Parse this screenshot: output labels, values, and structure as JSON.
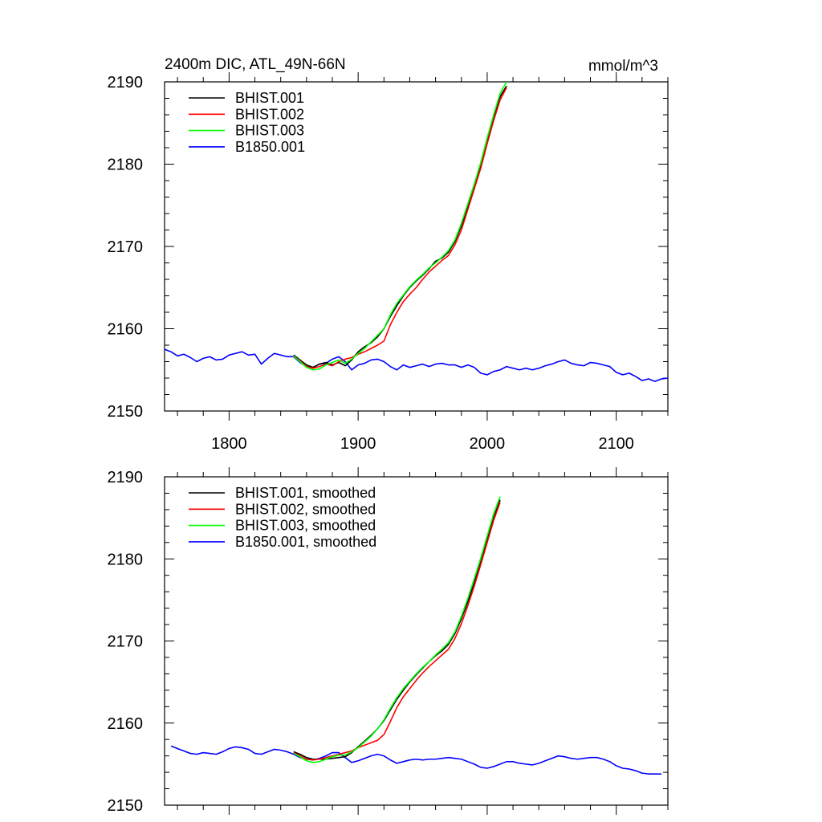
{
  "chart_data": [
    {
      "type": "line",
      "title": "2400m DIC, ATL_49N-66N",
      "units": "mmol/m^3",
      "xlim": [
        1750,
        2140
      ],
      "ylim": [
        2150,
        2190
      ],
      "x_ticks": [
        1800,
        1900,
        2000,
        2100
      ],
      "x_tick_labels": [
        "1800",
        "1900",
        "2000",
        "2100"
      ],
      "y_ticks": [
        2150,
        2160,
        2170,
        2180,
        2190
      ],
      "y_tick_labels": [
        "2150",
        "2160",
        "2170",
        "2180",
        "2190"
      ],
      "grid": false,
      "legend_position": "top-left",
      "series": [
        {
          "name": "BHIST.001",
          "color": "#000000",
          "x": [
            1850,
            1855,
            1860,
            1865,
            1870,
            1875,
            1880,
            1885,
            1890,
            1895,
            1900,
            1905,
            1910,
            1915,
            1920,
            1925,
            1930,
            1935,
            1940,
            1945,
            1950,
            1955,
            1960,
            1965,
            1970,
            1975,
            1980,
            1985,
            1990,
            1995,
            2000,
            2005,
            2010,
            2015
          ],
          "y": [
            2156.8,
            2156.2,
            2155.6,
            2155.3,
            2155.7,
            2155.9,
            2155.6,
            2155.9,
            2155.5,
            2156.2,
            2157.2,
            2157.8,
            2158.3,
            2159.0,
            2160.0,
            2161.5,
            2162.8,
            2164.0,
            2165.0,
            2165.8,
            2166.5,
            2167.3,
            2168.2,
            2168.6,
            2169.3,
            2170.6,
            2172.5,
            2174.8,
            2177.3,
            2179.8,
            2182.8,
            2185.6,
            2188.2,
            2189.5
          ]
        },
        {
          "name": "BHIST.002",
          "color": "#ff0000",
          "x": [
            1850,
            1855,
            1860,
            1865,
            1870,
            1875,
            1880,
            1885,
            1890,
            1895,
            1900,
            1905,
            1910,
            1915,
            1920,
            1925,
            1930,
            1935,
            1940,
            1945,
            1950,
            1955,
            1960,
            1965,
            1970,
            1975,
            1980,
            1985,
            1990,
            1995,
            2000,
            2005,
            2010,
            2015
          ],
          "y": [
            2156.6,
            2156.1,
            2155.4,
            2155.2,
            2155.4,
            2155.7,
            2155.5,
            2156.0,
            2156.3,
            2156.5,
            2156.9,
            2157.2,
            2157.6,
            2158.0,
            2158.5,
            2160.5,
            2162.0,
            2163.3,
            2164.2,
            2165.0,
            2166.0,
            2166.9,
            2167.6,
            2168.3,
            2168.9,
            2170.2,
            2172.0,
            2174.5,
            2177.0,
            2179.5,
            2182.5,
            2185.3,
            2187.8,
            2189.3
          ]
        },
        {
          "name": "BHIST.003",
          "color": "#00ff00",
          "x": [
            1850,
            1855,
            1860,
            1865,
            1870,
            1875,
            1880,
            1885,
            1890,
            1895,
            1900,
            1905,
            1910,
            1915,
            1920,
            1925,
            1930,
            1935,
            1940,
            1945,
            1950,
            1955,
            1960,
            1965,
            1970,
            1975,
            1980,
            1985,
            1990,
            1995,
            2000,
            2005,
            2010,
            2015
          ],
          "y": [
            2156.7,
            2156.0,
            2155.3,
            2155.0,
            2155.1,
            2155.6,
            2155.9,
            2156.2,
            2155.8,
            2156.3,
            2157.0,
            2157.6,
            2158.4,
            2159.2,
            2160.0,
            2161.7,
            2163.1,
            2164.1,
            2165.1,
            2165.9,
            2166.6,
            2167.4,
            2168.0,
            2168.7,
            2169.5,
            2170.8,
            2172.8,
            2175.2,
            2177.6,
            2180.2,
            2183.2,
            2186.0,
            2188.6,
            2190.0
          ]
        },
        {
          "name": "B1850.001",
          "color": "#0000ff",
          "x": [
            1750,
            1755,
            1760,
            1765,
            1770,
            1775,
            1780,
            1785,
            1790,
            1795,
            1800,
            1805,
            1810,
            1815,
            1820,
            1825,
            1830,
            1835,
            1840,
            1845,
            1850,
            1855,
            1860,
            1865,
            1870,
            1875,
            1880,
            1885,
            1890,
            1895,
            1900,
            1905,
            1910,
            1915,
            1920,
            1925,
            1930,
            1935,
            1940,
            1945,
            1950,
            1955,
            1960,
            1965,
            1970,
            1975,
            1980,
            1985,
            1990,
            1995,
            2000,
            2005,
            2010,
            2015,
            2020,
            2025,
            2030,
            2035,
            2040,
            2045,
            2050,
            2055,
            2060,
            2065,
            2070,
            2075,
            2080,
            2085,
            2090,
            2095,
            2100,
            2105,
            2110,
            2115,
            2120,
            2125,
            2130,
            2135,
            2140
          ],
          "y": [
            2157.5,
            2157.2,
            2156.7,
            2156.9,
            2156.5,
            2156.0,
            2156.4,
            2156.6,
            2156.2,
            2156.3,
            2156.8,
            2157.0,
            2157.2,
            2156.8,
            2156.9,
            2155.7,
            2156.4,
            2157.0,
            2156.8,
            2156.6,
            2156.6,
            2155.9,
            2155.4,
            2155.3,
            2155.7,
            2155.8,
            2156.3,
            2156.6,
            2156.0,
            2155.0,
            2155.6,
            2155.8,
            2156.2,
            2156.3,
            2156.0,
            2155.4,
            2155.0,
            2155.6,
            2155.3,
            2155.5,
            2155.7,
            2155.4,
            2155.7,
            2155.8,
            2155.6,
            2155.6,
            2155.3,
            2155.6,
            2155.3,
            2154.6,
            2154.4,
            2154.8,
            2155.0,
            2155.4,
            2155.2,
            2155.0,
            2155.2,
            2155.0,
            2155.2,
            2155.5,
            2155.7,
            2156.0,
            2156.2,
            2155.8,
            2155.6,
            2155.5,
            2155.9,
            2155.8,
            2155.6,
            2155.4,
            2154.7,
            2154.4,
            2154.6,
            2154.2,
            2153.7,
            2153.9,
            2153.6,
            2153.9,
            2154.0
          ]
        }
      ]
    },
    {
      "type": "line",
      "xlim": [
        1750,
        2140
      ],
      "ylim": [
        2150,
        2190
      ],
      "x_ticks": [
        1800,
        1900,
        2000,
        2100
      ],
      "y_ticks": [
        2150,
        2160,
        2170,
        2180,
        2190
      ],
      "y_tick_labels": [
        "2150",
        "2160",
        "2170",
        "2180",
        "2190"
      ],
      "grid": false,
      "legend_position": "top-left",
      "series": [
        {
          "name": "BHIST.001, smoothed",
          "color": "#000000",
          "x": [
            1850,
            1855,
            1860,
            1865,
            1870,
            1875,
            1880,
            1885,
            1890,
            1895,
            1900,
            1905,
            1910,
            1915,
            1920,
            1925,
            1930,
            1935,
            1940,
            1945,
            1950,
            1955,
            1960,
            1965,
            1970,
            1975,
            1980,
            1985,
            1990,
            1995,
            2000,
            2005,
            2010
          ],
          "y": [
            2156.5,
            2156.2,
            2155.8,
            2155.6,
            2155.6,
            2155.6,
            2155.7,
            2155.8,
            2155.9,
            2156.4,
            2157.1,
            2157.8,
            2158.5,
            2159.3,
            2160.3,
            2161.6,
            2162.9,
            2164.0,
            2165.0,
            2165.9,
            2166.7,
            2167.5,
            2168.2,
            2168.8,
            2169.6,
            2170.9,
            2172.7,
            2174.8,
            2177.1,
            2179.6,
            2182.3,
            2185.0,
            2187.2
          ]
        },
        {
          "name": "BHIST.002, smoothed",
          "color": "#ff0000",
          "x": [
            1850,
            1855,
            1860,
            1865,
            1870,
            1875,
            1880,
            1885,
            1890,
            1895,
            1900,
            1905,
            1910,
            1915,
            1920,
            1925,
            1930,
            1935,
            1940,
            1945,
            1950,
            1955,
            1960,
            1965,
            1970,
            1975,
            1980,
            1985,
            1990,
            1995,
            2000,
            2005,
            2010
          ],
          "y": [
            2156.4,
            2156.0,
            2155.6,
            2155.5,
            2155.6,
            2155.8,
            2156.0,
            2156.2,
            2156.4,
            2156.6,
            2157.0,
            2157.3,
            2157.6,
            2157.9,
            2158.6,
            2160.2,
            2161.9,
            2163.2,
            2164.2,
            2165.2,
            2166.1,
            2166.9,
            2167.6,
            2168.3,
            2169.0,
            2170.3,
            2172.1,
            2174.3,
            2176.7,
            2179.3,
            2182.0,
            2184.7,
            2186.9
          ]
        },
        {
          "name": "BHIST.003, smoothed",
          "color": "#00ff00",
          "x": [
            1850,
            1855,
            1860,
            1865,
            1870,
            1875,
            1880,
            1885,
            1890,
            1895,
            1900,
            1905,
            1910,
            1915,
            1920,
            1925,
            1930,
            1935,
            1940,
            1945,
            1950,
            1955,
            1960,
            1965,
            1970,
            1975,
            1980,
            1985,
            1990,
            1995,
            2000,
            2005,
            2010
          ],
          "y": [
            2156.3,
            2155.9,
            2155.4,
            2155.2,
            2155.3,
            2155.6,
            2155.9,
            2156.1,
            2156.1,
            2156.5,
            2157.0,
            2157.7,
            2158.4,
            2159.3,
            2160.4,
            2161.8,
            2163.1,
            2164.2,
            2165.1,
            2166.0,
            2166.8,
            2167.5,
            2168.3,
            2169.0,
            2169.8,
            2171.1,
            2173.0,
            2175.2,
            2177.6,
            2180.1,
            2182.8,
            2185.5,
            2187.6
          ]
        },
        {
          "name": "B1850.001, smoothed",
          "color": "#0000ff",
          "x": [
            1755,
            1760,
            1765,
            1770,
            1775,
            1780,
            1785,
            1790,
            1795,
            1800,
            1805,
            1810,
            1815,
            1820,
            1825,
            1830,
            1835,
            1840,
            1845,
            1850,
            1855,
            1860,
            1865,
            1870,
            1875,
            1880,
            1885,
            1890,
            1895,
            1900,
            1905,
            1910,
            1915,
            1920,
            1925,
            1930,
            1935,
            1940,
            1945,
            1950,
            1955,
            1960,
            1965,
            1970,
            1975,
            1980,
            1985,
            1990,
            1995,
            2000,
            2005,
            2010,
            2015,
            2020,
            2025,
            2030,
            2035,
            2040,
            2045,
            2050,
            2055,
            2060,
            2065,
            2070,
            2075,
            2080,
            2085,
            2090,
            2095,
            2100,
            2105,
            2110,
            2115,
            2120,
            2125,
            2130,
            2135
          ],
          "y": [
            2157.2,
            2156.9,
            2156.6,
            2156.3,
            2156.2,
            2156.4,
            2156.3,
            2156.2,
            2156.5,
            2156.9,
            2157.1,
            2157.0,
            2156.8,
            2156.3,
            2156.2,
            2156.5,
            2156.8,
            2156.7,
            2156.5,
            2156.2,
            2155.8,
            2155.6,
            2155.5,
            2155.7,
            2156.0,
            2156.4,
            2156.4,
            2155.8,
            2155.2,
            2155.4,
            2155.7,
            2156.0,
            2156.2,
            2156.0,
            2155.5,
            2155.1,
            2155.3,
            2155.5,
            2155.6,
            2155.5,
            2155.6,
            2155.6,
            2155.7,
            2155.8,
            2155.7,
            2155.6,
            2155.3,
            2155.0,
            2154.6,
            2154.5,
            2154.7,
            2155.0,
            2155.3,
            2155.3,
            2155.1,
            2155.0,
            2154.9,
            2155.1,
            2155.4,
            2155.7,
            2156.0,
            2155.9,
            2155.7,
            2155.6,
            2155.7,
            2155.8,
            2155.8,
            2155.6,
            2155.3,
            2154.8,
            2154.5,
            2154.4,
            2154.2,
            2153.9,
            2153.8,
            2153.8,
            2153.8
          ]
        }
      ]
    }
  ]
}
